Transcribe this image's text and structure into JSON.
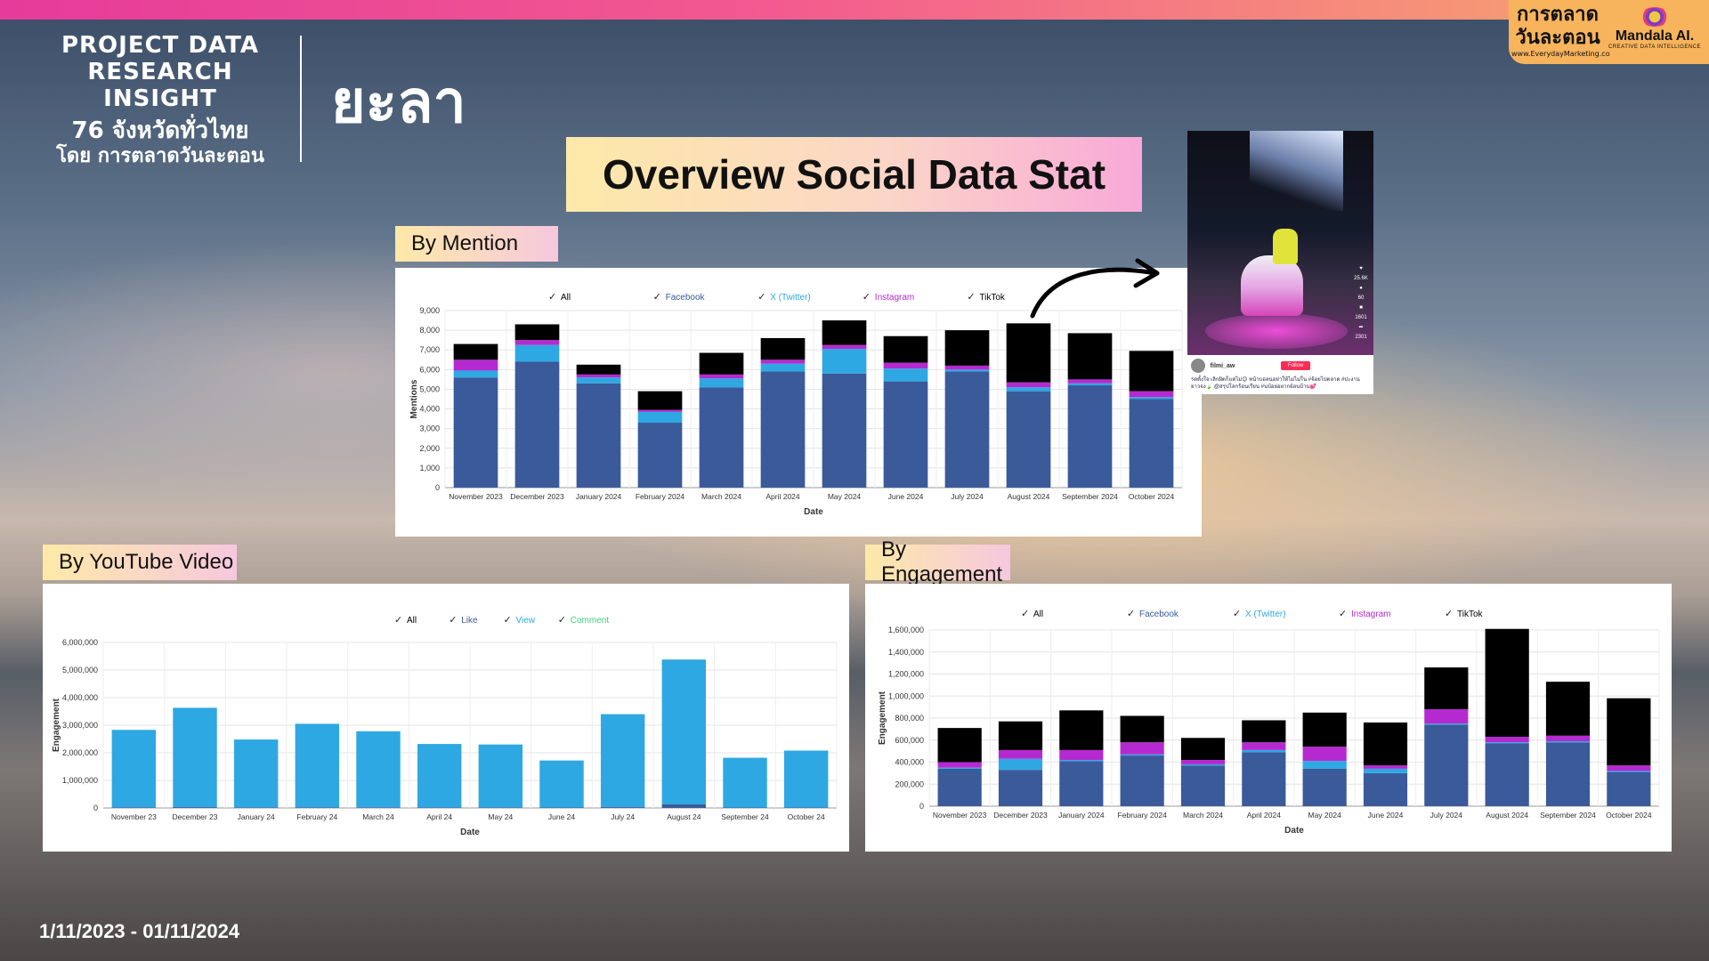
{
  "header": {
    "project_line1": "PROJECT DATA",
    "project_line2": "RESEARCH INSIGHT",
    "project_line3": "76 จังหวัดทั่วไทย",
    "project_line4": "โดย การตลาดวันละตอน",
    "province": "ยะลา",
    "overview_title": "Overview Social Data Stat",
    "brand_left": "การตลาด วันละตอน",
    "brand_left_url": "www.EverydayMarketing.co",
    "brand_right": "Mandala AI.",
    "brand_right_sub": "CREATIVE DATA INTELLIGENCE"
  },
  "tags": {
    "mention": "By Mention",
    "youtube": "By YouTube Video",
    "engagement": "By Engagement"
  },
  "tiktok": {
    "username": "filmi_aw",
    "follow": "Follow",
    "likes": "25.6K",
    "comments": "60",
    "saves": "1601",
    "shares": "2301",
    "caption": "รดตั้งใจ เลิกฝัดก็แต่ไม่😊 หน้าบอลนอย่าให้ไม่ไม่ใน #จ้อยไปตลาด #ปะงานยาวจง🍃 @สรุปโลกร้อนเรียน #นบ้อยอยากย้อนบ้าน💕",
    "counts_side": [
      "25.6K",
      "60",
      "1601",
      "2301"
    ]
  },
  "footer": {
    "date_range": "1/11/2023 - 01/11/2024"
  },
  "colors": {
    "facebook": "#3b5a9a",
    "twitter": "#2ea8e2",
    "instagram": "#b52ad0",
    "tiktok": "#000000",
    "comment": "#3ccf7a"
  },
  "chart_data": [
    {
      "id": "mention",
      "type": "bar",
      "stacked": true,
      "xlabel": "Date",
      "ylabel": "Mentions",
      "ylim": [
        0,
        9000
      ],
      "yticks": [
        0,
        1000,
        2000,
        3000,
        4000,
        5000,
        6000,
        7000,
        8000,
        9000
      ],
      "legend": [
        "All",
        "Facebook",
        "X (Twitter)",
        "Instagram",
        "TikTok"
      ],
      "categories": [
        "November 2023",
        "December 2023",
        "January 2024",
        "February 2024",
        "March 2024",
        "April 2024",
        "May 2024",
        "June 2024",
        "July 2024",
        "August 2024",
        "September 2024",
        "October 2024"
      ],
      "series": [
        {
          "name": "Facebook",
          "values": [
            5600,
            6400,
            5300,
            3300,
            5100,
            5900,
            5800,
            5400,
            5900,
            4900,
            5200,
            4500
          ]
        },
        {
          "name": "X (Twitter)",
          "values": [
            350,
            850,
            300,
            550,
            450,
            400,
            1250,
            650,
            100,
            200,
            100,
            100
          ]
        },
        {
          "name": "Instagram",
          "values": [
            550,
            250,
            150,
            100,
            200,
            200,
            200,
            300,
            200,
            250,
            200,
            300
          ]
        },
        {
          "name": "TikTok",
          "values": [
            800,
            800,
            500,
            950,
            1100,
            1100,
            1250,
            1350,
            1800,
            3000,
            2350,
            2050
          ]
        }
      ]
    },
    {
      "id": "youtube",
      "type": "bar",
      "stacked": true,
      "xlabel": "Date",
      "ylabel": "Engagement",
      "ylim": [
        0,
        6000000
      ],
      "yticks": [
        0,
        1000000,
        2000000,
        3000000,
        4000000,
        5000000,
        6000000
      ],
      "legend": [
        "All",
        "Like",
        "View",
        "Comment"
      ],
      "categories": [
        "November 23",
        "December 23",
        "January 24",
        "February 24",
        "March 24",
        "April 24",
        "May 24",
        "June 24",
        "July 24",
        "August 24",
        "September 24",
        "October 24"
      ],
      "series": [
        {
          "name": "Like",
          "values": [
            25000,
            30000,
            20000,
            25000,
            22000,
            20000,
            20000,
            15000,
            30000,
            130000,
            15000,
            18000
          ]
        },
        {
          "name": "View",
          "values": [
            2805000,
            3600000,
            2460000,
            3025000,
            2758000,
            2300000,
            2280000,
            1705000,
            3370000,
            5250000,
            1805000,
            2062000
          ]
        },
        {
          "name": "Comment",
          "values": [
            1000,
            1500,
            800,
            1000,
            900,
            800,
            800,
            600,
            1200,
            3000,
            600,
            700
          ]
        }
      ]
    },
    {
      "id": "engagement",
      "type": "bar",
      "stacked": true,
      "xlabel": "Date",
      "ylabel": "Engagement",
      "ylim": [
        0,
        1600000
      ],
      "yticks": [
        0,
        200000,
        400000,
        600000,
        800000,
        1000000,
        1200000,
        1400000,
        1600000
      ],
      "legend": [
        "All",
        "Facebook",
        "X (Twitter)",
        "Instagram",
        "TikTok"
      ],
      "categories": [
        "November 2023",
        "December 2023",
        "January 2024",
        "February 2024",
        "March 2024",
        "April 2024",
        "May 2024",
        "June 2024",
        "July 2024",
        "August 2024",
        "September 2024",
        "October 2024"
      ],
      "series": [
        {
          "name": "Facebook",
          "values": [
            340000,
            330000,
            410000,
            460000,
            370000,
            490000,
            340000,
            300000,
            740000,
            570000,
            580000,
            310000
          ]
        },
        {
          "name": "X (Twitter)",
          "values": [
            10000,
            100000,
            10000,
            10000,
            10000,
            20000,
            70000,
            40000,
            10000,
            10000,
            10000,
            10000
          ]
        },
        {
          "name": "Instagram",
          "values": [
            50000,
            80000,
            90000,
            110000,
            40000,
            70000,
            130000,
            30000,
            130000,
            50000,
            50000,
            50000
          ]
        },
        {
          "name": "TikTok",
          "values": [
            310000,
            260000,
            360000,
            240000,
            200000,
            200000,
            310000,
            390000,
            380000,
            980000,
            490000,
            610000
          ]
        }
      ]
    }
  ]
}
